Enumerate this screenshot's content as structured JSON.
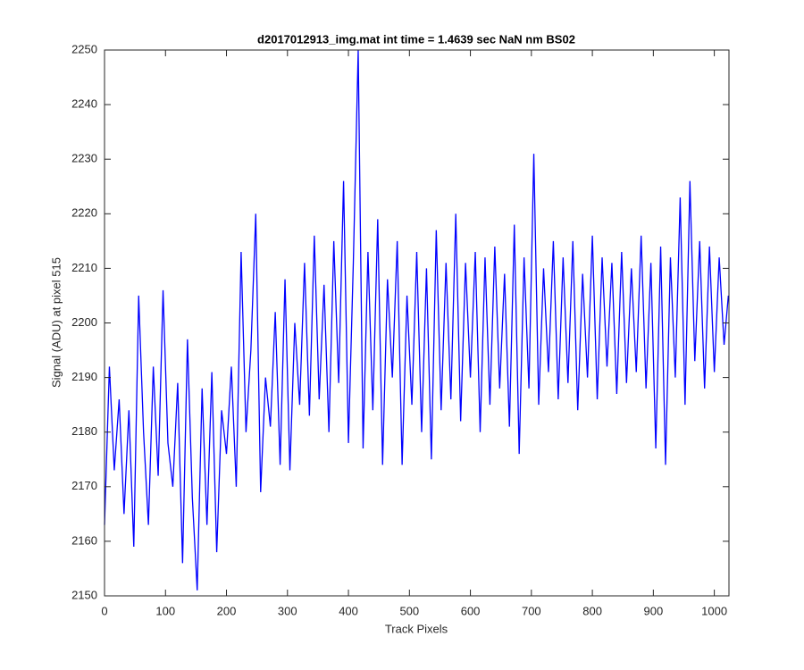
{
  "chart_data": {
    "type": "line",
    "title": "d2017012913_img.mat int time = 1.4639 sec  NaN nm BS02",
    "x_label": "Track Pixels",
    "y_label": "Signal (ADU) at pixel 515",
    "xlim": [
      0,
      1024
    ],
    "ylim": [
      2150,
      2250
    ],
    "xticks": [
      0,
      100,
      200,
      300,
      400,
      500,
      600,
      700,
      800,
      900,
      1000
    ],
    "yticks": [
      2150,
      2160,
      2170,
      2180,
      2190,
      2200,
      2210,
      2220,
      2230,
      2240,
      2250
    ],
    "grid": false,
    "x": [
      0,
      8,
      16,
      24,
      32,
      40,
      48,
      56,
      64,
      72,
      80,
      88,
      96,
      104,
      112,
      120,
      128,
      136,
      144,
      152,
      160,
      168,
      176,
      184,
      192,
      200,
      208,
      216,
      224,
      232,
      240,
      248,
      256,
      264,
      272,
      280,
      288,
      296,
      304,
      312,
      320,
      328,
      336,
      344,
      352,
      360,
      368,
      376,
      384,
      392,
      400,
      408,
      416,
      424,
      432,
      440,
      448,
      456,
      464,
      472,
      480,
      488,
      496,
      504,
      512,
      520,
      528,
      536,
      544,
      552,
      560,
      568,
      576,
      584,
      592,
      600,
      608,
      616,
      624,
      632,
      640,
      648,
      656,
      664,
      672,
      680,
      688,
      696,
      704,
      712,
      720,
      728,
      736,
      744,
      752,
      760,
      768,
      776,
      784,
      792,
      800,
      808,
      816,
      824,
      832,
      840,
      848,
      856,
      864,
      872,
      880,
      888,
      896,
      904,
      912,
      920,
      928,
      936,
      944,
      952,
      960,
      968,
      976,
      984,
      992,
      1000,
      1008,
      1016,
      1023
    ],
    "series": [
      {
        "color": "#0000ff",
        "values": [
          2163,
          2192,
          2173,
          2186,
          2165,
          2184,
          2159,
          2205,
          2180,
          2163,
          2192,
          2172,
          2206,
          2178,
          2170,
          2189,
          2156,
          2197,
          2168,
          2151,
          2188,
          2163,
          2191,
          2158,
          2184,
          2176,
          2192,
          2170,
          2213,
          2180,
          2195,
          2220,
          2169,
          2190,
          2181,
          2202,
          2174,
          2208,
          2173,
          2200,
          2185,
          2211,
          2183,
          2216,
          2186,
          2207,
          2180,
          2215,
          2189,
          2226,
          2178,
          2211,
          2250,
          2177,
          2213,
          2184,
          2219,
          2174,
          2208,
          2190,
          2215,
          2174,
          2205,
          2185,
          2213,
          2180,
          2210,
          2175,
          2217,
          2184,
          2211,
          2186,
          2220,
          2182,
          2211,
          2190,
          2213,
          2180,
          2212,
          2185,
          2214,
          2188,
          2209,
          2181,
          2218,
          2176,
          2212,
          2188,
          2231,
          2185,
          2210,
          2191,
          2215,
          2186,
          2212,
          2189,
          2215,
          2184,
          2209,
          2190,
          2216,
          2186,
          2212,
          2192,
          2211,
          2187,
          2213,
          2189,
          2210,
          2191,
          2216,
          2188,
          2211,
          2177,
          2214,
          2174,
          2212,
          2190,
          2223,
          2185,
          2226,
          2193,
          2215,
          2188,
          2214,
          2191,
          2212,
          2196,
          2205
        ]
      }
    ]
  }
}
